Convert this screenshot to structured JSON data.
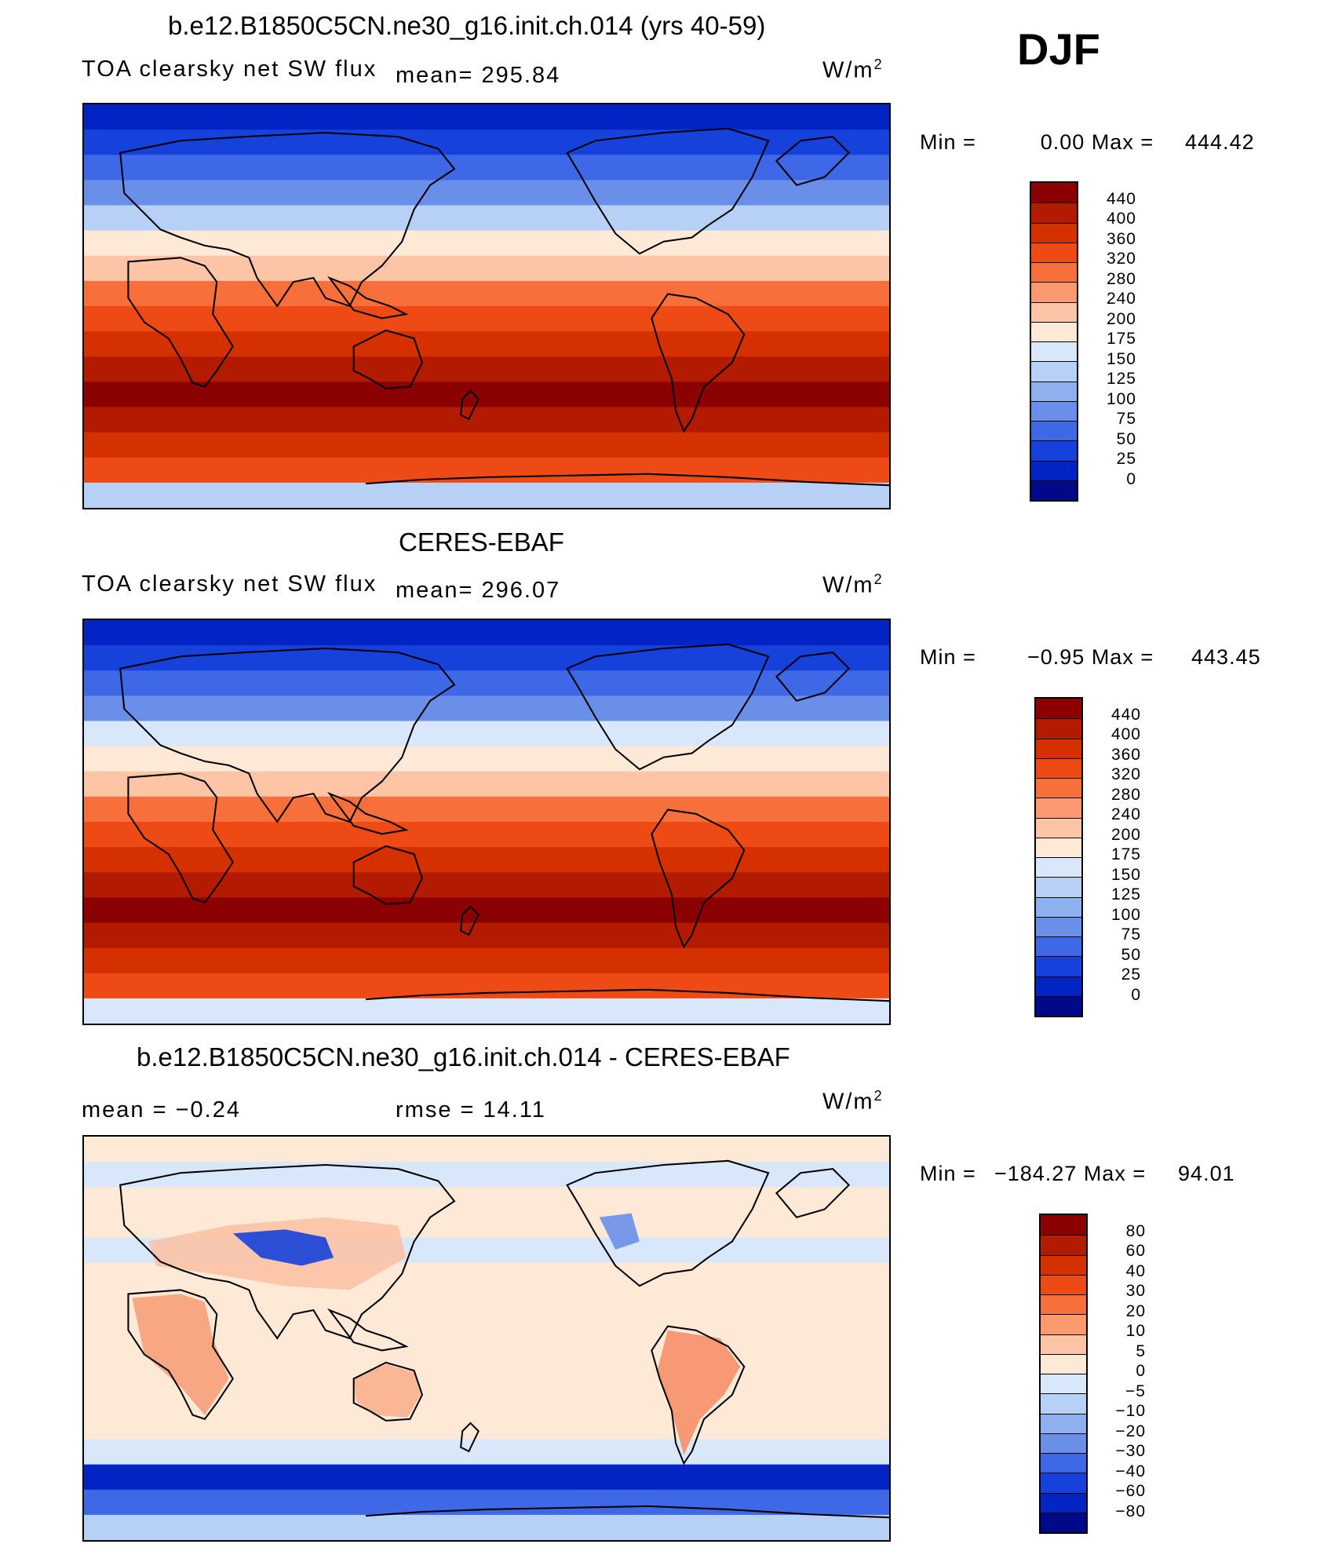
{
  "season": "DJF",
  "panels": [
    {
      "title": "b.e12.B1850C5CN.ne30_g16.init.ch.014 (yrs 40-59)",
      "variable": "TOA clearsky net SW flux",
      "stat": "mean= 295.84",
      "stat2": "",
      "units": "W/m",
      "units_exp": "2",
      "min_label": "Min =",
      "min_value": "0.00",
      "max_label": "Max =",
      "max_value": "444.42",
      "levels": [
        "440",
        "400",
        "360",
        "320",
        "280",
        "240",
        "200",
        "175",
        "150",
        "125",
        "100",
        "75",
        "50",
        "25",
        "0"
      ],
      "colors": [
        "#8b0000",
        "#b31b00",
        "#d53000",
        "#ee4a15",
        "#f7703b",
        "#fb9a71",
        "#fdc4a5",
        "#fee8d6",
        "#d8e8fa",
        "#b6d0f6",
        "#8fb0ee",
        "#6a8fe9",
        "#3f68e6",
        "#1641da",
        "#0224c4",
        "#000a88"
      ],
      "band_colors": [
        "#0224c4",
        "#1641da",
        "#3f68e6",
        "#6a8fe9",
        "#b6d0f6",
        "#fee8d6",
        "#fdc4a5",
        "#f7703b",
        "#ee4a15",
        "#d53000",
        "#b31b00",
        "#8b0000",
        "#b31b00",
        "#d53000",
        "#ee4a15",
        "#b6d0f6"
      ]
    },
    {
      "title": "CERES-EBAF",
      "variable": "TOA clearsky net SW flux",
      "stat": "mean= 296.07",
      "stat2": "",
      "units": "W/m",
      "units_exp": "2",
      "min_label": "Min =",
      "min_value": "−0.95",
      "max_label": "Max =",
      "max_value": "443.45",
      "levels": [
        "440",
        "400",
        "360",
        "320",
        "280",
        "240",
        "200",
        "175",
        "150",
        "125",
        "100",
        "75",
        "50",
        "25",
        "0"
      ],
      "colors": [
        "#8b0000",
        "#b31b00",
        "#d53000",
        "#ee4a15",
        "#f7703b",
        "#fb9a71",
        "#fdc4a5",
        "#fee8d6",
        "#d8e8fa",
        "#b6d0f6",
        "#8fb0ee",
        "#6a8fe9",
        "#3f68e6",
        "#1641da",
        "#0224c4",
        "#000a88"
      ],
      "band_colors": [
        "#0224c4",
        "#1641da",
        "#3f68e6",
        "#6a8fe9",
        "#d8e8fa",
        "#fee8d6",
        "#fdc4a5",
        "#f7703b",
        "#ee4a15",
        "#d53000",
        "#b31b00",
        "#8b0000",
        "#b31b00",
        "#d53000",
        "#ee4a15",
        "#d8e8fa"
      ]
    },
    {
      "title": "b.e12.B1850C5CN.ne30_g16.init.ch.014 - CERES-EBAF",
      "variable": "",
      "stat": "mean =  −0.24",
      "stat2": "rmse =  14.11",
      "units": "W/m",
      "units_exp": "2",
      "min_label": "Min =",
      "min_value": "−184.27",
      "max_label": "Max =",
      "max_value": "94.01",
      "levels": [
        "80",
        "60",
        "40",
        "30",
        "20",
        "10",
        "5",
        "0",
        "−5",
        "−10",
        "−20",
        "−30",
        "−40",
        "−60",
        "−80"
      ],
      "colors": [
        "#8b0000",
        "#b31b00",
        "#d53000",
        "#ee4a15",
        "#f7703b",
        "#fb9a71",
        "#fdc4a5",
        "#fee8d6",
        "#d8e8fa",
        "#b6d0f6",
        "#8fb0ee",
        "#6a8fe9",
        "#3f68e6",
        "#1641da",
        "#0224c4",
        "#000a88"
      ],
      "band_colors": [
        "#fee8d6",
        "#d8e8fa",
        "#fee8d6",
        "#fee8d6",
        "#d8e8fa",
        "#fee8d6",
        "#fee8d6",
        "#fee8d6",
        "#fee8d6",
        "#fee8d6",
        "#fee8d6",
        "#fee8d6",
        "#d8e8fa",
        "#0224c4",
        "#3f68e6",
        "#b6d0f6"
      ]
    }
  ]
}
